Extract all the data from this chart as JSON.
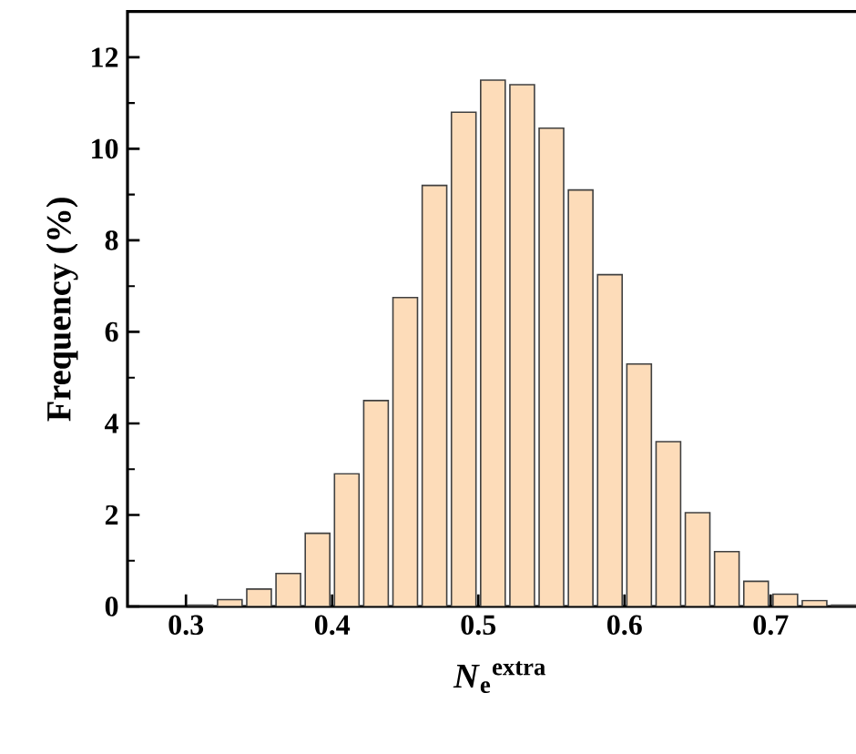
{
  "chart_data": {
    "type": "histogram",
    "xlabel": "*N*$_{e}$$^{extra}$",
    "ylabel": "Frequency (%)",
    "bins": [
      0.3,
      0.32,
      0.34,
      0.36,
      0.38,
      0.4,
      0.42,
      0.44,
      0.46,
      0.48,
      0.5,
      0.52,
      0.54,
      0.56,
      0.58,
      0.6,
      0.62,
      0.64,
      0.66,
      0.68,
      0.7,
      0.72,
      0.74,
      0.76
    ],
    "values": [
      0.03,
      0.15,
      0.38,
      0.72,
      1.6,
      2.9,
      4.5,
      6.75,
      9.2,
      10.8,
      11.5,
      11.4,
      10.45,
      9.1,
      7.25,
      5.3,
      3.6,
      2.05,
      1.2,
      0.55,
      0.27,
      0.13,
      0.03
    ],
    "color": "#fddcb9",
    "xlim": [
      0.26,
      0.77
    ],
    "ylim": [
      0,
      13
    ],
    "xticks": [
      0.3,
      0.4,
      0.5,
      0.6,
      0.7
    ],
    "yticks": [
      0,
      2,
      4,
      6,
      8,
      10,
      12
    ]
  }
}
